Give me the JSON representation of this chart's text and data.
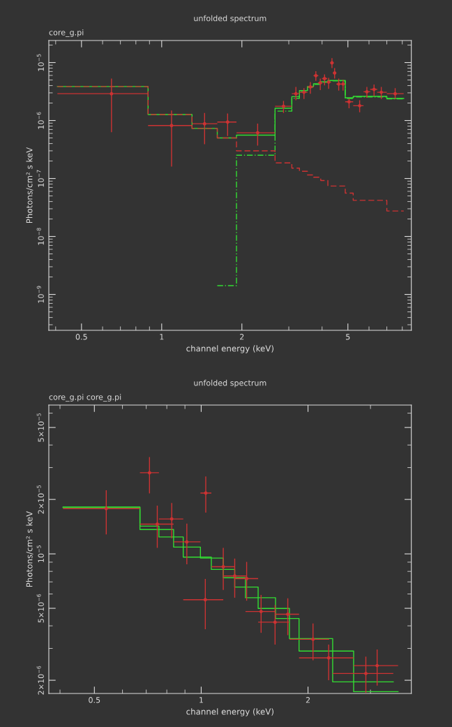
{
  "chart_data": [
    {
      "type": "step",
      "title": "unfolded spectrum",
      "subtitle": "core_g.pi",
      "xlabel": "channel energy (keV)",
      "ylabel": "Photons/cm² s keV",
      "log": "xy",
      "xlim": [
        0.377,
        8.65
      ],
      "ylim": [
        2.4e-10,
        2.4e-05
      ],
      "xticks": [
        0.5,
        1,
        2,
        5
      ],
      "yticks": [
        {
          "value": 1e-05,
          "label": "10$^{−5}$"
        },
        {
          "value": 1e-06,
          "label": "10$^{−6}$"
        },
        {
          "value": 1e-07,
          "label": "10$^{−7}$"
        },
        {
          "value": 1e-08,
          "label": "10$^{−8}$"
        },
        {
          "value": 1e-09,
          "label": "10$^{−9}$"
        }
      ],
      "marker": "none",
      "series": [
        {
          "type": "scatter",
          "marker": "circle",
          "color": "#cc3333",
          "x": [
            0.648,
            1.089,
            1.449,
            1.768,
            2.292,
            2.866,
            3.19,
            3.42,
            3.615,
            3.79,
            3.938,
            4.087,
            4.234,
            4.357,
            4.458,
            4.619,
            4.795,
            5.05,
            5.535,
            5.891,
            6.268,
            6.672,
            7.523
          ],
          "values": [
            2.9e-06,
            8.2e-07,
            8.8e-07,
            9.4e-07,
            6.15e-07,
            1.76e-06,
            2.9e-06,
            3.07e-06,
            3.79e-06,
            5.94e-06,
            4.46e-06,
            5.3e-06,
            4.59e-06,
            9.86e-06,
            6.6e-06,
            4.25e-06,
            4.25e-06,
            2.1e-06,
            1.8e-06,
            3.13e-06,
            3.44e-06,
            3.07e-06,
            2.9e-06
          ],
          "xerrors": [
            [
              0.406,
              0.889
            ],
            [
              0.889,
              1.3
            ],
            [
              1.3,
              1.617
            ],
            [
              1.617,
              1.909
            ],
            [
              1.909,
              2.664
            ],
            [
              2.664,
              3.08
            ],
            [
              3.08,
              3.29
            ],
            [
              3.29,
              3.525
            ],
            [
              3.525,
              3.715
            ],
            [
              3.715,
              3.873
            ],
            [
              3.856,
              4.02
            ],
            [
              3.996,
              4.181
            ],
            [
              4.146,
              4.321
            ],
            [
              4.295,
              4.421
            ],
            [
              4.394,
              4.523
            ],
            [
              4.523,
              4.716
            ],
            [
              4.697,
              4.886
            ],
            [
              4.886,
              5.234
            ],
            [
              5.234,
              5.723
            ],
            [
              5.723,
              6.065
            ],
            [
              6.065,
              6.441
            ],
            [
              6.441,
              6.996
            ],
            [
              6.996,
              8.095
            ]
          ],
          "errors": [
            [
              6.3e-07,
              5.3e-06
            ],
            [
              1.61e-07,
              1.49e-06
            ],
            [
              3.9e-07,
              1.35e-06
            ],
            [
              5.4e-07,
              1.32e-06
            ],
            [
              3.7e-07,
              8.85e-07
            ],
            [
              1.35e-06,
              2.18e-06
            ],
            [
              2.24e-06,
              3.79e-06
            ],
            [
              2.35e-06,
              3.61e-06
            ],
            [
              2.9e-06,
              4.59e-06
            ],
            [
              4.82e-06,
              7.06e-06
            ],
            [
              3.35e-06,
              5.3e-06
            ],
            [
              4.05e-06,
              6.24e-06
            ],
            [
              3.51e-06,
              5.45e-06
            ],
            [
              8e-06,
              1.19e-05
            ],
            [
              5.3e-06,
              8e-06
            ],
            [
              3.28e-06,
              5.3e-06
            ],
            [
              3.28e-06,
              5.05e-06
            ],
            [
              1.63e-06,
              2.39e-06
            ],
            [
              1.39e-06,
              2.24e-06
            ],
            [
              2.46e-06,
              3.79e-06
            ],
            [
              2.64e-06,
              4.17e-06
            ],
            [
              2.35e-06,
              3.79e-06
            ],
            [
              2.35e-06,
              3.61e-06
            ]
          ]
        },
        {
          "color": "#33dd33",
          "line_style": "solid",
          "x": [
            0.406,
            0.889,
            1.3,
            1.617,
            1.909,
            2.664,
            3.08,
            3.29,
            3.525,
            3.715,
            3.954,
            4.205,
            4.887,
            5.234,
            7.0,
            8.1
          ],
          "values": [
            3.86e-06,
            1.27e-06,
            7.3e-07,
            5e-07,
            5.6e-07,
            1.63e-06,
            2.58e-06,
            3.29e-06,
            3.86e-06,
            4.3e-06,
            4.68e-06,
            4.9e-06,
            2.47e-06,
            2.61e-06,
            2.4e-06,
            2.4e-06
          ]
        },
        {
          "color": "#cc3333",
          "line_style": "dashed",
          "x": [
            0.406,
            0.889,
            1.3,
            1.617,
            1.909,
            2.664,
            3.08,
            3.29,
            3.525,
            3.715,
            3.954,
            4.205,
            4.887,
            5.234,
            7.0,
            8.1
          ],
          "values": [
            3.86e-06,
            1.27e-06,
            7.3e-07,
            5e-07,
            3e-07,
            1.86e-07,
            1.51e-07,
            1.33e-07,
            1.15e-07,
            1.05e-07,
            9.2e-08,
            7.4e-08,
            5.6e-08,
            4.2e-08,
            2.75e-08,
            2.75e-08
          ]
        },
        {
          "color": "#33dd33",
          "line_style": "dashdot",
          "x": [
            1.617,
            1.909,
            2.664,
            3.08,
            3.29,
            3.525,
            3.715,
            3.954,
            4.205,
            4.887,
            5.234,
            7.0,
            8.1
          ],
          "values": [
            1.42e-09,
            2.52e-07,
            1.45e-06,
            2.42e-06,
            3.16e-06,
            3.74e-06,
            4.2e-06,
            4.58e-06,
            4.82e-06,
            2.4e-06,
            2.55e-06,
            2.37e-06,
            2.37e-06
          ]
        }
      ]
    },
    {
      "type": "step",
      "title": "unfolded spectrum",
      "subtitle": "core_g.pi core_g.pi",
      "xlabel": "channel energy (keV)",
      "ylabel": "Photons/cm² s keV",
      "log": "xy",
      "xlim": [
        0.372,
        3.91
      ],
      "ylim": [
        1.69e-06,
        6.65e-05
      ],
      "xticks": [
        0.5,
        1,
        2
      ],
      "yticks": [
        {
          "value": 5e-05,
          "label": "5×10$^{−5}$"
        },
        {
          "value": 2e-05,
          "label": "2×10$^{−5}$"
        },
        {
          "value": 1e-05,
          "label": "10$^{−5}$"
        },
        {
          "value": 5e-06,
          "label": "5×10$^{−6}$"
        },
        {
          "value": 2e-06,
          "label": "2×10$^{−6}$"
        }
      ],
      "marker": "none",
      "series": [
        {
          "color": "#33dd33",
          "line_style": "solid",
          "x": [
            0.408,
            0.672,
            0.76,
            0.89,
            1.068,
            1.154,
            1.333,
            1.62,
            1.887,
            2.689,
            3.588
          ],
          "values": [
            1.816e-05,
            1.424e-05,
            1.24e-05,
            9.6e-06,
            8.2e-06,
            7.38e-06,
            5.72e-06,
            4.39e-06,
            2.9e-06,
            1.73e-06,
            1.73e-06
          ]
        },
        {
          "color": "#33dd33",
          "line_style": "solid",
          "x": [
            0.408,
            0.672,
            0.836,
            0.995,
            1.154,
            1.243,
            1.447,
            1.773,
            2.347,
            3.478
          ],
          "values": [
            1.805e-05,
            1.364e-05,
            1.09e-05,
            9.48e-06,
            8.2e-06,
            6.55e-06,
            4.99e-06,
            3.4e-06,
            1.96e-06,
            1.96e-06
          ]
        },
        {
          "type": "scatter",
          "marker": "circle",
          "color": "#cc3333",
          "x": [
            0.54,
            0.715,
            0.752,
            0.826,
            0.911,
            1.03,
            1.027,
            1.154,
            1.243,
            1.343,
            1.475,
            1.615,
            1.754,
            2.066,
            2.287,
            2.911,
            3.132
          ],
          "values": [
            1.78e-05,
            2.81e-05,
            1.46e-05,
            1.56e-05,
            1.165e-05,
            2.17e-05,
            5.58e-06,
            8.49e-06,
            7.55e-06,
            7.3e-06,
            4.8e-06,
            4.19e-06,
            4.64e-06,
            3.37e-06,
            2.66e-06,
            2.18e-06,
            2.41e-06
          ],
          "xerrors": [
            [
              0.408,
              0.672
            ],
            [
              0.672,
              0.76
            ],
            [
              0.672,
              0.836
            ],
            [
              0.76,
              0.89
            ],
            [
              0.836,
              0.995
            ],
            [
              0.995,
              1.068
            ],
            [
              0.89,
              1.154
            ],
            [
              1.068,
              1.243
            ],
            [
              1.154,
              1.339
            ],
            [
              1.238,
              1.447
            ],
            [
              1.333,
              1.62
            ],
            [
              1.447,
              1.773
            ],
            [
              1.62,
              1.887
            ],
            [
              1.773,
              2.294
            ],
            [
              1.887,
              2.689
            ],
            [
              2.347,
              3.478
            ],
            [
              2.689,
              3.588
            ]
          ],
          "errors": [
            [
              1.28e-05,
              2.25e-05
            ],
            [
              2.16e-05,
              3.43e-05
            ],
            [
              1.08e-05,
              1.85e-05
            ],
            [
              1.22e-05,
              1.91e-05
            ],
            [
              8.75e-06,
              1.47e-05
            ],
            [
              1.69e-05,
              2.68e-05
            ],
            [
              3.83e-06,
              7.27e-06
            ],
            [
              6.31e-06,
              1.08e-05
            ],
            [
              5.72e-06,
              9.42e-06
            ],
            [
              5.51e-06,
              9.03e-06
            ],
            [
              3.66e-06,
              5.93e-06
            ],
            [
              3.15e-06,
              5.21e-06
            ],
            [
              3.55e-06,
              5.68e-06
            ],
            [
              2.58e-06,
              4.12e-06
            ],
            [
              2e-06,
              3.15e-06
            ],
            [
              1.7e-06,
              2.7e-06
            ],
            [
              1.87e-06,
              2.96e-06
            ]
          ]
        }
      ]
    }
  ]
}
